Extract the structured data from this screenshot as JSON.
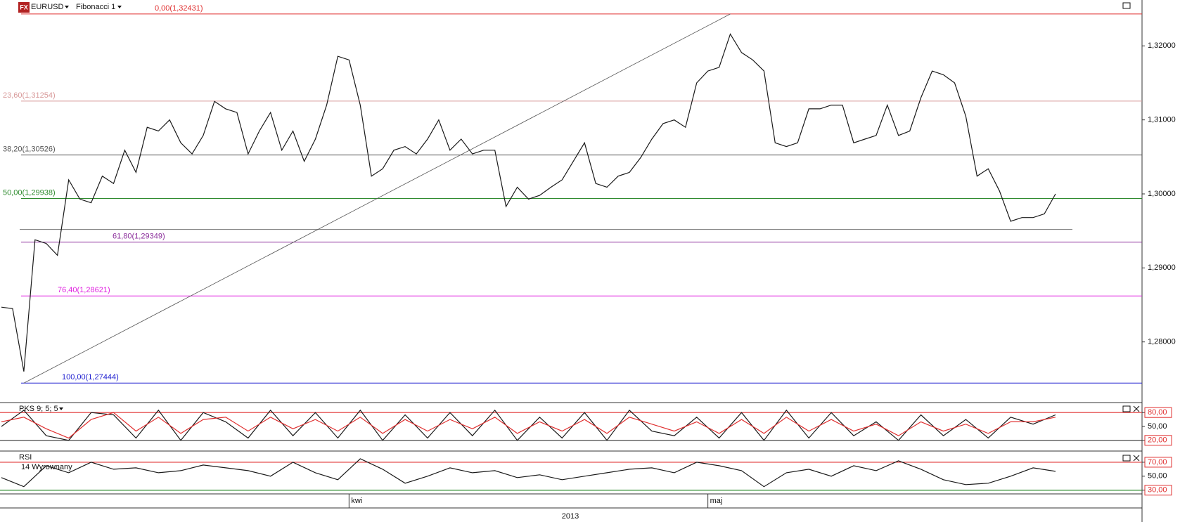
{
  "chart_data": [
    {
      "type": "line",
      "logo": "FX",
      "title": "EURUSD",
      "subtitle": "Fibonacci 1",
      "color": "#1a1a1a",
      "categories": [
        null,
        null,
        null,
        null,
        null,
        null,
        null,
        null,
        null,
        null,
        null,
        null,
        null,
        null,
        null,
        null,
        null,
        null,
        null,
        null,
        null,
        null,
        null,
        null,
        null,
        null,
        null,
        null,
        null,
        null,
        null,
        "kwi",
        null,
        null,
        null,
        null,
        null,
        null,
        null,
        null,
        null,
        null,
        null,
        null,
        null,
        null,
        null,
        null,
        null,
        null,
        null,
        null,
        null,
        null,
        null,
        null,
        null,
        null,
        null,
        null,
        null,
        null,
        null,
        "maj",
        null,
        null,
        null,
        null,
        null,
        null,
        null,
        null,
        null,
        null,
        null,
        null,
        null,
        null,
        null,
        null,
        null,
        null,
        null,
        null,
        null,
        null,
        null,
        null,
        null,
        null,
        null,
        null,
        null,
        null,
        null
      ],
      "values": [
        1.2847,
        1.2845,
        1.276,
        1.2938,
        1.2933,
        1.2917,
        1.3019,
        1.2993,
        1.2988,
        1.3024,
        1.3014,
        1.3059,
        1.3029,
        1.309,
        1.3085,
        1.31,
        1.3069,
        1.3054,
        1.3079,
        1.3125,
        1.3115,
        1.311,
        1.3054,
        1.3085,
        1.311,
        1.3059,
        1.3085,
        1.3044,
        1.3074,
        1.312,
        1.3186,
        1.3181,
        1.312,
        1.3024,
        1.3034,
        1.3059,
        1.3064,
        1.3054,
        1.3074,
        1.31,
        1.3059,
        1.3074,
        1.3054,
        1.3059,
        1.3059,
        1.2983,
        1.3009,
        1.2993,
        1.2998,
        1.3009,
        1.3019,
        1.3044,
        1.3069,
        1.3014,
        1.3009,
        1.3024,
        1.3029,
        1.3049,
        1.3074,
        1.3095,
        1.31,
        1.309,
        1.315,
        1.3166,
        1.3171,
        1.3216,
        1.3191,
        1.3181,
        1.3166,
        1.3069,
        1.3064,
        1.3069,
        1.3115,
        1.3115,
        1.312,
        1.312,
        1.3069,
        1.3074,
        1.3079,
        1.312,
        1.3079,
        1.3085,
        1.313,
        1.3166,
        1.3161,
        1.315,
        1.3105,
        1.3024,
        1.3034,
        1.3004,
        1.2963,
        1.2968,
        1.2968,
        1.2973,
        1.3
      ],
      "ylim": [
        1.2719,
        1.3262
      ],
      "yticks": [
        {
          "value": 1.28,
          "label": "1,28000"
        },
        {
          "value": 1.29,
          "label": "1,29000"
        },
        {
          "value": 1.3,
          "label": "1,30000"
        },
        {
          "value": 1.31,
          "label": "1,31000"
        },
        {
          "value": 1.32,
          "label": "1,32000"
        }
      ],
      "fib_levels": [
        {
          "label": "0,00(1,32431)",
          "value": 1.32431,
          "color": "#e03030"
        },
        {
          "label": "23,60(1,31254)",
          "value": 1.31254,
          "color": "#d89a9a"
        },
        {
          "label": "38,20(1,30526)",
          "value": 1.30526,
          "color": "#555555"
        },
        {
          "label": "50,00(1,29938)",
          "value": 1.29938,
          "color": "#2e8b2e"
        },
        {
          "label": "61,80(1,29349)",
          "value": 1.29349,
          "color": "#8b2e9b"
        },
        {
          "label": "76,40(1,28621)",
          "value": 1.28621,
          "color": "#e020e0"
        },
        {
          "label": "100,00(1,27444)",
          "value": 1.27444,
          "color": "#2020d0"
        }
      ],
      "horizontal_line": 1.2952,
      "year_label": "2013"
    },
    {
      "type": "oscillator",
      "title": "PKS 9; 5; 5",
      "series": [
        {
          "color": "#1a1a1a",
          "values": [
            50,
            85,
            30,
            20,
            80,
            75,
            25,
            85,
            20,
            80,
            60,
            25,
            85,
            30,
            80,
            25,
            85,
            20,
            75,
            25,
            80,
            30,
            85,
            20,
            70,
            25,
            80,
            20,
            85,
            40,
            30,
            70,
            25,
            80,
            20,
            85,
            25,
            80,
            30,
            60,
            20,
            75,
            30,
            65,
            25,
            70,
            55,
            75
          ]
        },
        {
          "color": "#e03030",
          "values": [
            60,
            70,
            45,
            25,
            65,
            80,
            40,
            70,
            35,
            65,
            70,
            40,
            70,
            45,
            65,
            40,
            70,
            35,
            65,
            40,
            65,
            45,
            70,
            35,
            60,
            40,
            65,
            35,
            70,
            55,
            40,
            60,
            35,
            65,
            35,
            70,
            40,
            65,
            40,
            55,
            30,
            60,
            40,
            55,
            35,
            60,
            60,
            70
          ]
        }
      ],
      "ylim": [
        0,
        100
      ],
      "yticks": [
        {
          "value": 80,
          "label": "80,00"
        },
        {
          "value": 50,
          "label": "50,00"
        },
        {
          "value": 20,
          "label": "20,00"
        }
      ],
      "level_colors": [
        "#e03030",
        "#333333"
      ]
    },
    {
      "type": "oscillator",
      "title": "RSI",
      "subtitle": "14 Wyrownany",
      "series": [
        {
          "color": "#1a1a1a",
          "values": [
            48,
            35,
            65,
            55,
            70,
            60,
            62,
            55,
            58,
            66,
            62,
            58,
            50,
            70,
            55,
            45,
            75,
            60,
            40,
            50,
            62,
            55,
            58,
            48,
            52,
            45,
            50,
            55,
            60,
            62,
            55,
            70,
            65,
            58,
            35,
            55,
            60,
            50,
            65,
            58,
            72,
            60,
            45,
            38,
            40,
            50,
            62,
            57
          ]
        }
      ],
      "ylim": [
        25.7,
        84
      ],
      "yticks": [
        {
          "value": 70,
          "label": "70,00"
        },
        {
          "value": 50,
          "label": "50,00"
        },
        {
          "value": 30,
          "label": "30,00"
        }
      ],
      "level_colors": [
        "#e03030",
        "#2e8b2e"
      ]
    }
  ]
}
